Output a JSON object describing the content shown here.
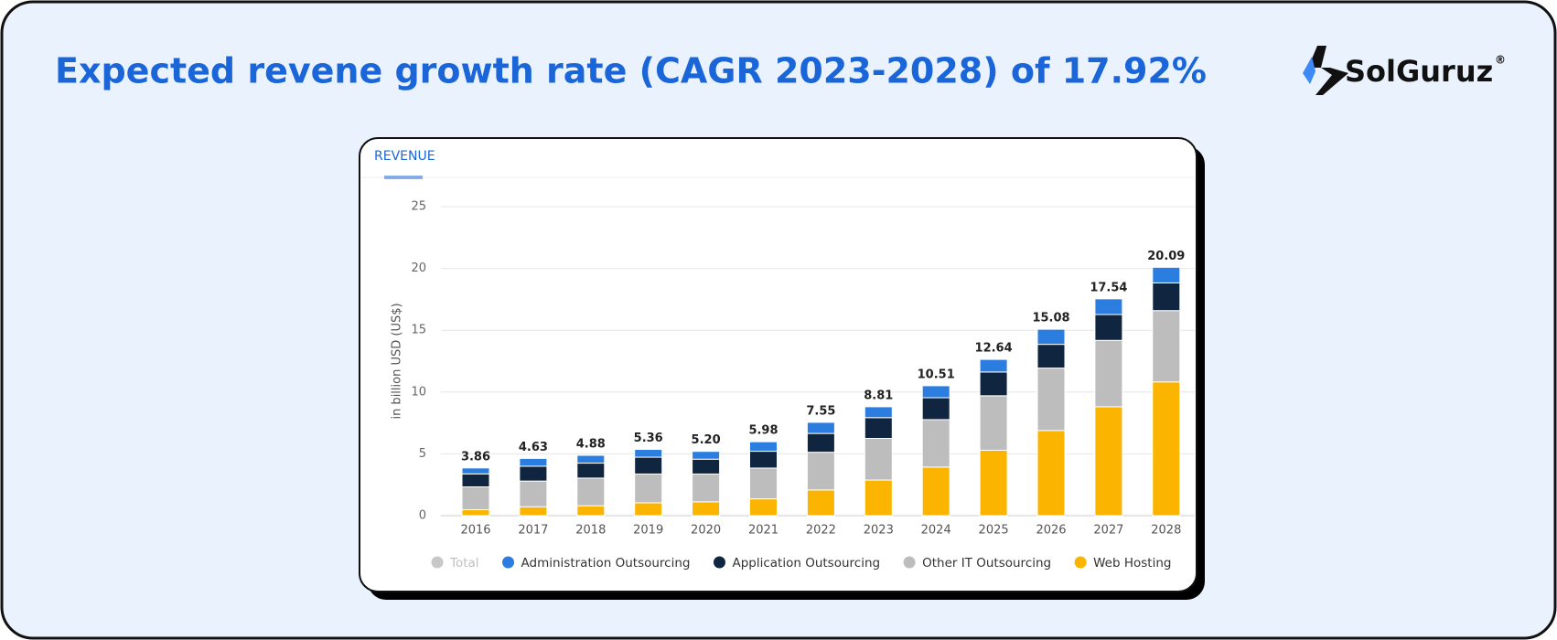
{
  "header": {
    "title": "Expected revene growth rate (CAGR 2023-2028) of 17.92%",
    "logo": "SolGuruz",
    "logo_mark": "®"
  },
  "chart_data": {
    "type": "stacked_bar",
    "tab": "REVENUE",
    "y_label": "in billion USD (US$)",
    "categories": [
      "2016",
      "2017",
      "2018",
      "2019",
      "2020",
      "2021",
      "2022",
      "2023",
      "2024",
      "2025",
      "2026",
      "2027",
      "2028"
    ],
    "total": {
      "name": "Total",
      "color": "#c8c8c8",
      "values": [
        3.86,
        4.63,
        4.88,
        5.36,
        5.2,
        5.98,
        7.55,
        8.81,
        10.51,
        12.64,
        15.08,
        17.54,
        20.09
      ],
      "value_labels": [
        "3.86",
        "4.63",
        "4.88",
        "5.36",
        "5.20",
        "5.98",
        "7.55",
        "8.81",
        "10.51",
        "12.64",
        "15.08",
        "17.54",
        "20.09"
      ]
    },
    "series": [
      {
        "name": "Administration Outsourcing",
        "color": "#2b7de0",
        "values": [
          0.48,
          0.63,
          0.63,
          0.63,
          0.63,
          0.77,
          0.9,
          0.88,
          0.97,
          1.02,
          1.22,
          1.27,
          1.26
        ]
      },
      {
        "name": "Application Outsourcing",
        "color": "#0f2540",
        "values": [
          1.05,
          1.2,
          1.21,
          1.36,
          1.2,
          1.36,
          1.52,
          1.68,
          1.77,
          1.92,
          1.92,
          2.09,
          2.24
        ]
      },
      {
        "name": "Other IT Outsourcing",
        "color": "#bdbdbd",
        "values": [
          1.85,
          2.08,
          2.24,
          2.33,
          2.25,
          2.49,
          3.05,
          3.37,
          3.84,
          4.41,
          5.05,
          5.37,
          5.77
        ]
      },
      {
        "name": "Web Hosting",
        "color": "#fbb500",
        "values": [
          0.48,
          0.72,
          0.8,
          1.04,
          1.12,
          1.36,
          2.08,
          2.88,
          3.93,
          5.29,
          6.89,
          8.81,
          10.82
        ]
      }
    ],
    "ylim": [
      0,
      25
    ],
    "yticks": [
      0,
      5,
      10,
      15,
      20,
      25
    ],
    "grid": true
  }
}
